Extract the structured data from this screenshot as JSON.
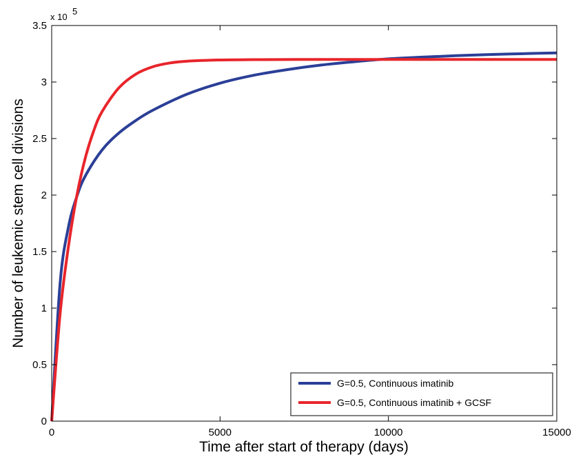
{
  "chart_data": {
    "type": "line",
    "xlabel": "Time after start of therapy (days)",
    "ylabel": "Number of leukemic stem cell divisions",
    "xlim": [
      0,
      15000
    ],
    "ylim": [
      0,
      350000
    ],
    "x_ticks": [
      0,
      5000,
      10000,
      15000
    ],
    "x_tick_labels": [
      "0",
      "5000",
      "10000",
      "15000"
    ],
    "y_ticks": [
      0,
      50000,
      100000,
      150000,
      200000,
      250000,
      300000,
      350000
    ],
    "y_tick_labels": [
      "0",
      "0.5",
      "1",
      "1.5",
      "2",
      "2.5",
      "3",
      "3.5"
    ],
    "y_exponent_label": "x 10",
    "y_exponent_power": "5",
    "grid": false,
    "legend_position": "bottom-right",
    "series": [
      {
        "name": "G=0.5, Continuous imatinib",
        "color": "#2b3f97",
        "x": [
          0,
          250,
          500,
          750,
          1000,
          1500,
          2000,
          2500,
          3000,
          4000,
          5000,
          6000,
          7000,
          8000,
          9000,
          10000,
          11000,
          12000,
          13000,
          14000,
          15000
        ],
        "y": [
          0,
          122000,
          172000,
          199000,
          217000,
          240000,
          255000,
          266000,
          275000,
          289000,
          299000,
          306000,
          311000,
          315000,
          318000,
          320500,
          322000,
          323300,
          324300,
          325100,
          325800
        ]
      },
      {
        "name": "G=0.5, Continuous imatinib + GCSF",
        "color": "#e8252b",
        "x": [
          0,
          250,
          500,
          750,
          1000,
          1250,
          1500,
          2000,
          2500,
          3000,
          3500,
          4000,
          5000,
          6000,
          8000,
          10000,
          12000,
          15000
        ],
        "y": [
          0,
          95000,
          155000,
          200000,
          233000,
          257000,
          274000,
          295000,
          307000,
          313500,
          316800,
          318400,
          319500,
          319800,
          320000,
          320000,
          320000,
          320000
        ]
      }
    ]
  }
}
